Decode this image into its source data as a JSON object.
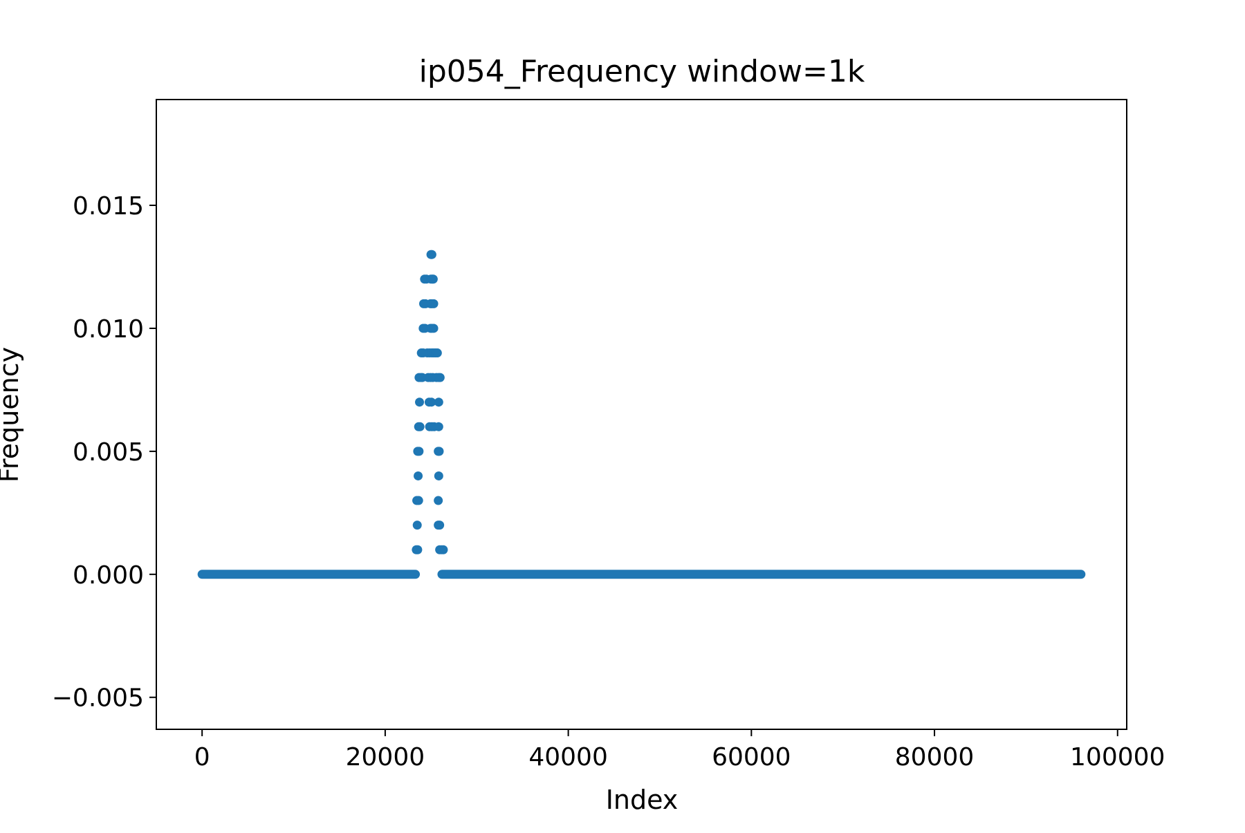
{
  "chart_data": {
    "type": "scatter",
    "title": "ip054_Frequency window=1k",
    "xlabel": "Index",
    "ylabel": "Frequency",
    "xlim": [
      -5000,
      101000
    ],
    "ylim": [
      -0.0063,
      0.0193
    ],
    "xticks": [
      0,
      20000,
      40000,
      60000,
      80000,
      100000
    ],
    "xtick_labels": [
      "0",
      "20000",
      "40000",
      "60000",
      "80000",
      "100000"
    ],
    "yticks": [
      -0.005,
      0.0,
      0.005,
      0.01,
      0.015
    ],
    "ytick_labels": [
      "−0.005",
      "0.000",
      "0.005",
      "0.010",
      "0.015"
    ],
    "grid": false,
    "legend": false,
    "marker_color": "#1f77b4",
    "series": [
      {
        "baseline_ranges": [
          {
            "x_start": 0,
            "x_end": 23300,
            "y": 0.0
          },
          {
            "x_start": 26200,
            "x_end": 96000,
            "y": 0.0
          }
        ],
        "points": [
          {
            "x": 23400,
            "y": 0.001
          },
          {
            "x": 23550,
            "y": 0.001
          },
          {
            "x": 23500,
            "y": 0.002
          },
          {
            "x": 23450,
            "y": 0.003
          },
          {
            "x": 23650,
            "y": 0.003
          },
          {
            "x": 23600,
            "y": 0.004
          },
          {
            "x": 23550,
            "y": 0.005
          },
          {
            "x": 23700,
            "y": 0.005
          },
          {
            "x": 23650,
            "y": 0.006
          },
          {
            "x": 23800,
            "y": 0.006
          },
          {
            "x": 23750,
            "y": 0.007
          },
          {
            "x": 23700,
            "y": 0.008
          },
          {
            "x": 23900,
            "y": 0.008
          },
          {
            "x": 24050,
            "y": 0.008
          },
          {
            "x": 23950,
            "y": 0.009
          },
          {
            "x": 24150,
            "y": 0.009
          },
          {
            "x": 24150,
            "y": 0.01
          },
          {
            "x": 24350,
            "y": 0.01
          },
          {
            "x": 24200,
            "y": 0.011
          },
          {
            "x": 24400,
            "y": 0.011
          },
          {
            "x": 24300,
            "y": 0.012
          },
          {
            "x": 24500,
            "y": 0.012
          },
          {
            "x": 25000,
            "y": 0.013
          },
          {
            "x": 25100,
            "y": 0.013
          },
          {
            "x": 25000,
            "y": 0.012
          },
          {
            "x": 25150,
            "y": 0.012
          },
          {
            "x": 25250,
            "y": 0.012
          },
          {
            "x": 24950,
            "y": 0.011
          },
          {
            "x": 25100,
            "y": 0.011
          },
          {
            "x": 25300,
            "y": 0.011
          },
          {
            "x": 24950,
            "y": 0.01
          },
          {
            "x": 25100,
            "y": 0.01
          },
          {
            "x": 25300,
            "y": 0.01
          },
          {
            "x": 24600,
            "y": 0.009
          },
          {
            "x": 24850,
            "y": 0.009
          },
          {
            "x": 25100,
            "y": 0.009
          },
          {
            "x": 25300,
            "y": 0.009
          },
          {
            "x": 25500,
            "y": 0.009
          },
          {
            "x": 25700,
            "y": 0.009
          },
          {
            "x": 24700,
            "y": 0.008
          },
          {
            "x": 24950,
            "y": 0.008
          },
          {
            "x": 25200,
            "y": 0.008
          },
          {
            "x": 25600,
            "y": 0.008
          },
          {
            "x": 25850,
            "y": 0.008
          },
          {
            "x": 26000,
            "y": 0.008
          },
          {
            "x": 24800,
            "y": 0.007
          },
          {
            "x": 25050,
            "y": 0.007
          },
          {
            "x": 25850,
            "y": 0.007
          },
          {
            "x": 24850,
            "y": 0.006
          },
          {
            "x": 25100,
            "y": 0.006
          },
          {
            "x": 25350,
            "y": 0.006
          },
          {
            "x": 25850,
            "y": 0.006
          },
          {
            "x": 25800,
            "y": 0.005
          },
          {
            "x": 25900,
            "y": 0.005
          },
          {
            "x": 25850,
            "y": 0.004
          },
          {
            "x": 25800,
            "y": 0.003
          },
          {
            "x": 25800,
            "y": 0.002
          },
          {
            "x": 25950,
            "y": 0.002
          },
          {
            "x": 25950,
            "y": 0.001
          },
          {
            "x": 26150,
            "y": 0.001
          },
          {
            "x": 26350,
            "y": 0.001
          }
        ]
      }
    ]
  }
}
